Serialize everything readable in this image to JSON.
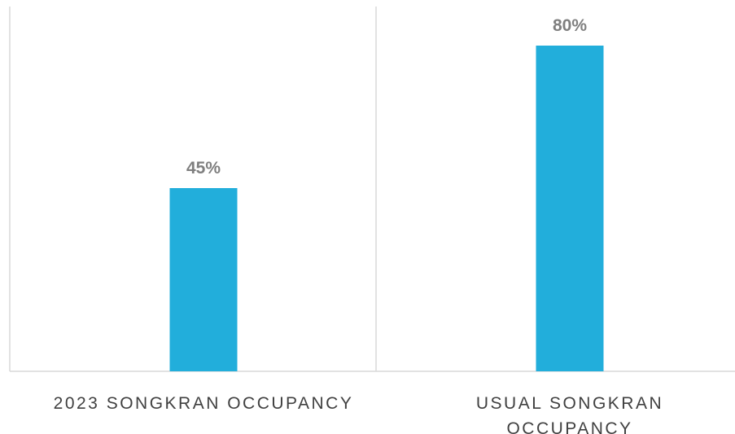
{
  "chart_data": {
    "type": "bar",
    "categories": [
      [
        "2023 SONGKRAN OCCUPANCY"
      ],
      [
        "USUAL SONGKRAN",
        "OCCUPANCY"
      ]
    ],
    "values": [
      45,
      80
    ],
    "value_labels": [
      "45%",
      "80%"
    ],
    "ylim": [
      0,
      100
    ],
    "title": "",
    "xlabel": "",
    "ylabel": "",
    "grid": false,
    "legend": "none",
    "bar_color": "#22AEDB",
    "axis_color": "#D9D9D9",
    "label_color": "#7F7F7F",
    "category_text_color": "#404040"
  }
}
